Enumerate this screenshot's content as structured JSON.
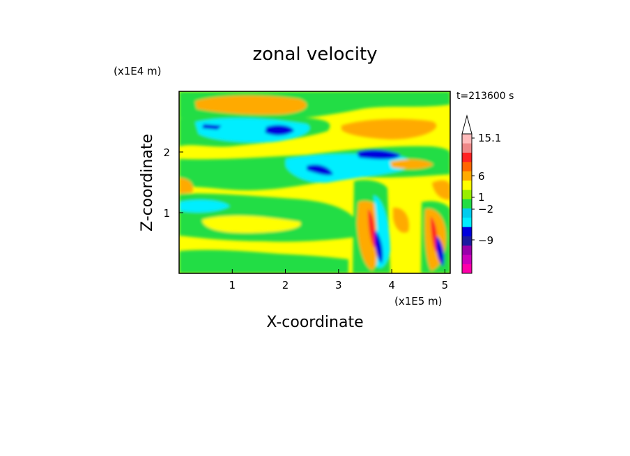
{
  "chart_data": {
    "type": "heatmap",
    "title": "zonal velocity",
    "xlabel": "X-coordinate",
    "ylabel": "Z-coordinate",
    "x_scale_label": "(x1E5 m)",
    "y_scale_label": "(x1E4 m)",
    "time_label": "t=213600 s",
    "xlim": [
      0,
      5.1
    ],
    "ylim": [
      0,
      3.0
    ],
    "x_ticks": [
      "1",
      "2",
      "3",
      "4",
      "5"
    ],
    "x_tick_values": [
      1,
      2,
      3,
      4,
      5
    ],
    "y_ticks": [
      "1",
      "2"
    ],
    "y_tick_values": [
      1,
      2
    ],
    "colorbar": {
      "levels": [
        -15,
        -12,
        -9,
        -6,
        -3,
        -2,
        -1,
        0,
        1,
        2,
        3,
        6,
        9,
        12,
        15.1
      ],
      "colors": [
        "#ff00aa",
        "#cc00bb",
        "#9900aa",
        "#1a1aa0",
        "#0000dd",
        "#00eeff",
        "#00ccee",
        "#22dd44",
        "#99ee00",
        "#ffff00",
        "#ffaa00",
        "#ff6600",
        "#ff2222",
        "#ee8888",
        "#ffbbbb"
      ],
      "tick_labels": [
        "15.1",
        "6",
        "1",
        "−2",
        "−9"
      ],
      "tick_values": [
        15.1,
        6,
        1,
        -2,
        -9
      ],
      "extend": "max"
    }
  }
}
